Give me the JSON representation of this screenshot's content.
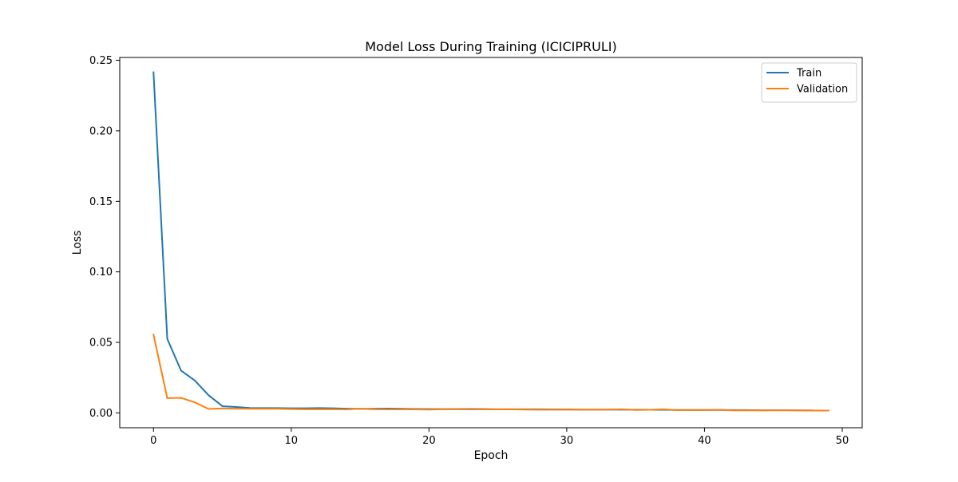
{
  "chart_data": {
    "type": "line",
    "title": "Model Loss During Training (ICICIPRULI)",
    "xlabel": "Epoch",
    "ylabel": "Loss",
    "xlim": [
      -2.45,
      51.45
    ],
    "ylim": [
      -0.0105,
      0.252
    ],
    "xticks": [
      0,
      10,
      20,
      30,
      40,
      50
    ],
    "xtick_labels": [
      "0",
      "10",
      "20",
      "30",
      "40",
      "50"
    ],
    "yticks": [
      0.0,
      0.05,
      0.1,
      0.15,
      0.2,
      0.25
    ],
    "ytick_labels": [
      "0.00",
      "0.05",
      "0.10",
      "0.15",
      "0.20",
      "0.25"
    ],
    "grid": false,
    "legend_position": "upper-right",
    "x": [
      0,
      1,
      2,
      3,
      4,
      5,
      6,
      7,
      8,
      9,
      10,
      11,
      12,
      13,
      14,
      15,
      16,
      17,
      18,
      19,
      20,
      21,
      22,
      23,
      24,
      25,
      26,
      27,
      28,
      29,
      30,
      31,
      32,
      33,
      34,
      35,
      36,
      37,
      38,
      39,
      40,
      41,
      42,
      43,
      44,
      45,
      46,
      47,
      48,
      49
    ],
    "series": [
      {
        "name": "Train",
        "color": "#1f77b4",
        "values": [
          0.2415,
          0.0525,
          0.03,
          0.023,
          0.0125,
          0.0048,
          0.0042,
          0.0035,
          0.0034,
          0.0034,
          0.0033,
          0.0033,
          0.0034,
          0.0033,
          0.003,
          0.0029,
          0.0029,
          0.0031,
          0.0029,
          0.0028,
          0.0027,
          0.0027,
          0.0027,
          0.0028,
          0.0027,
          0.0026,
          0.0026,
          0.0026,
          0.0026,
          0.0025,
          0.0025,
          0.0024,
          0.0024,
          0.0024,
          0.0023,
          0.0023,
          0.0022,
          0.0022,
          0.0021,
          0.0021,
          0.0021,
          0.0021,
          0.002,
          0.002,
          0.0019,
          0.0019,
          0.0019,
          0.0018,
          0.0017,
          0.0017
        ]
      },
      {
        "name": "Validation",
        "color": "#ff7f0e",
        "values": [
          0.0555,
          0.0105,
          0.0107,
          0.0075,
          0.0028,
          0.0032,
          0.003,
          0.0029,
          0.0029,
          0.0029,
          0.0027,
          0.0026,
          0.0026,
          0.0026,
          0.0025,
          0.003,
          0.0026,
          0.0025,
          0.0025,
          0.0025,
          0.0024,
          0.0026,
          0.0026,
          0.0025,
          0.0025,
          0.0025,
          0.0026,
          0.0024,
          0.0023,
          0.0023,
          0.0023,
          0.0023,
          0.0024,
          0.0024,
          0.0026,
          0.0021,
          0.0022,
          0.0026,
          0.002,
          0.002,
          0.002,
          0.0022,
          0.0018,
          0.0018,
          0.0018,
          0.0019,
          0.0019,
          0.0018,
          0.0017,
          0.0017
        ]
      }
    ]
  }
}
